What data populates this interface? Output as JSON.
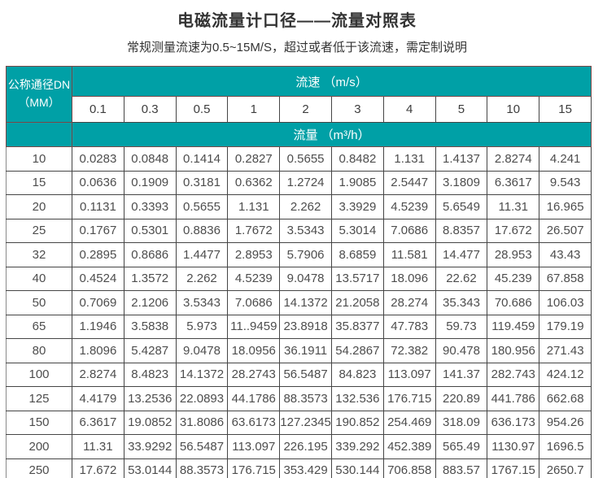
{
  "title": "电磁流量计口径——流量对照表",
  "subtitle": "常规测量流速为0.5~15M/S，超过或者低于该流速，需定制说明",
  "colors": {
    "header_teal": "#00A0A6",
    "teal_divider": "#7B4848",
    "cell_border": "#454545",
    "cell_text": "#4D4D4D"
  },
  "table": {
    "dn_header_line1": "公称通径DN",
    "dn_header_line2": "（MM）",
    "velocity_header": "流速 （m/s）",
    "flow_header": "流量 （m³/h）",
    "velocities": [
      "0.1",
      "0.3",
      "0.5",
      "1",
      "2",
      "3",
      "4",
      "5",
      "10",
      "15"
    ],
    "rows": [
      {
        "dn": "10",
        "flows": [
          "0.0283",
          "0.0848",
          "0.1414",
          "0.2827",
          "0.5655",
          "0.8482",
          "1.131",
          "1.4137",
          "2.8274",
          "4.241"
        ]
      },
      {
        "dn": "15",
        "flows": [
          "0.0636",
          "0.1909",
          "0.3181",
          "0.6362",
          "1.2724",
          "1.9085",
          "2.5447",
          "3.1809",
          "6.3617",
          "9.543"
        ]
      },
      {
        "dn": "20",
        "flows": [
          "0.1131",
          "0.3393",
          "0.5655",
          "1.131",
          "2.262",
          "3.3929",
          "4.5239",
          "5.6549",
          "11.31",
          "16.965"
        ]
      },
      {
        "dn": "25",
        "flows": [
          "0.1767",
          "0.5301",
          "0.8836",
          "1.7672",
          "3.5343",
          "5.3014",
          "7.0686",
          "8.8357",
          "17.672",
          "26.507"
        ]
      },
      {
        "dn": "32",
        "flows": [
          "0.2895",
          "0.8686",
          "1.4477",
          "2.8953",
          "5.7906",
          "8.6859",
          "11.581",
          "14.477",
          "28.953",
          "43.43"
        ]
      },
      {
        "dn": "40",
        "flows": [
          "0.4524",
          "1.3572",
          "2.262",
          "4.5239",
          "9.0478",
          "13.5717",
          "18.096",
          "22.62",
          "45.239",
          "67.858"
        ]
      },
      {
        "dn": "50",
        "flows": [
          "0.7069",
          "2.1206",
          "3.5343",
          "7.0686",
          "14.1372",
          "21.2058",
          "28.274",
          "35.343",
          "70.686",
          "106.03"
        ]
      },
      {
        "dn": "65",
        "flows": [
          "1.1946",
          "3.5838",
          "5.973",
          "11..9459",
          "23.8918",
          "35.8377",
          "47.783",
          "59.73",
          "119.459",
          "179.19"
        ]
      },
      {
        "dn": "80",
        "flows": [
          "1.8096",
          "5.4287",
          "9.0478",
          "18.0956",
          "36.1911",
          "54.2867",
          "72.382",
          "90.478",
          "180.956",
          "271.43"
        ]
      },
      {
        "dn": "100",
        "flows": [
          "2.8274",
          "8.4823",
          "14.1372",
          "28.2743",
          "56.5487",
          "84.823",
          "113.097",
          "141.37",
          "282.743",
          "424.12"
        ]
      },
      {
        "dn": "125",
        "flows": [
          "4.4179",
          "13.2536",
          "22.0893",
          "44.1786",
          "88.3573",
          "132.536",
          "176.715",
          "220.89",
          "441.786",
          "662.68"
        ]
      },
      {
        "dn": "150",
        "flows": [
          "6.3617",
          "19.0852",
          "31.8086",
          "63.6173",
          "127.2345",
          "190.852",
          "254.469",
          "318.09",
          "636.173",
          "954.26"
        ]
      },
      {
        "dn": "200",
        "flows": [
          "11.31",
          "33.9292",
          "56.5487",
          "113.097",
          "226.195",
          "339.292",
          "452.389",
          "565.49",
          "1130.97",
          "1696.5"
        ]
      },
      {
        "dn": "250",
        "flows": [
          "17.672",
          "53.0144",
          "88.3573",
          "176.715",
          "353.429",
          "530.144",
          "706.858",
          "883.57",
          "1767.15",
          "2650.7"
        ]
      }
    ]
  }
}
